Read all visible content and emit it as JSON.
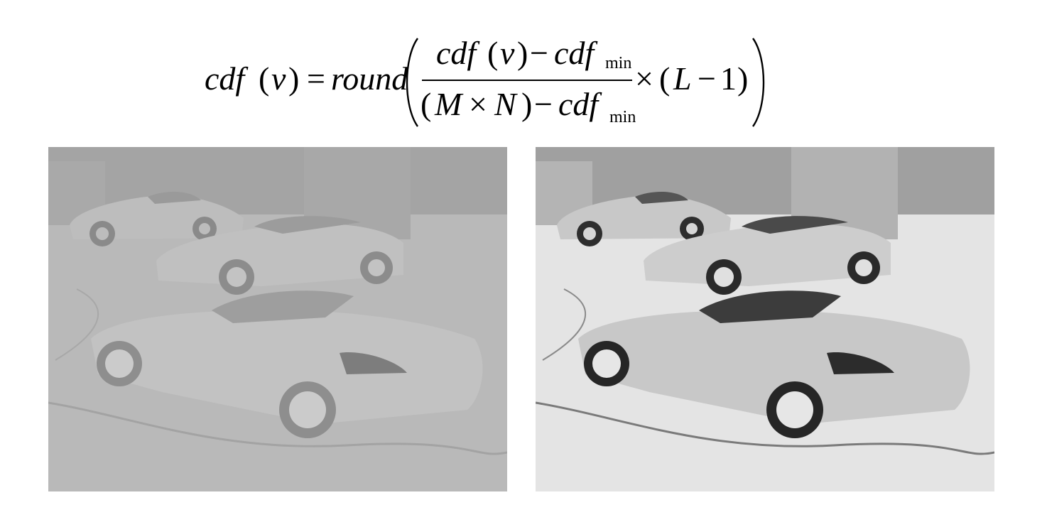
{
  "formula": {
    "lhs_fn": "cdf",
    "lhs_arg": "v",
    "equals": "=",
    "round_fn": "round",
    "num_fn": "cdf",
    "num_arg": "v",
    "minus": "−",
    "cdf_term": "cdf",
    "min_sub": "min",
    "den_m": "M",
    "times": "×",
    "den_n": "N",
    "mult": "×",
    "L": "L",
    "one": "1"
  },
  "colors": {
    "left_ground": "#b9b9b9",
    "left_wall": "#a4a4a4",
    "left_car": "#bdbdbd",
    "right_ground": "#e4e4e4",
    "right_wall": "#a0a0a0",
    "right_car": "#c8c8c8"
  }
}
